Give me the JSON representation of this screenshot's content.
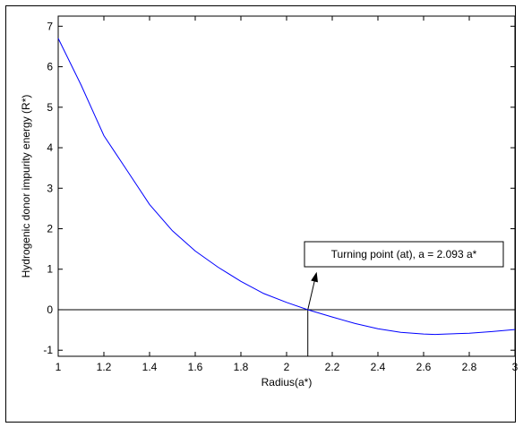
{
  "chart_data": {
    "type": "line",
    "xlabel": "Radius(a*)",
    "ylabel": "Hydrogenic donor impurity energy  (R*)",
    "xlim": [
      1,
      3
    ],
    "ylim": [
      -1.15,
      7.25
    ],
    "xticks": [
      "1",
      "1.2",
      "1.4",
      "1.6",
      "1.8",
      "2",
      "2.2",
      "2.4",
      "2.6",
      "2.8",
      "3"
    ],
    "yticks": [
      "-1",
      "0",
      "1",
      "2",
      "3",
      "4",
      "5",
      "6",
      "7"
    ],
    "grid": false,
    "series": [
      {
        "color": "#0000ff",
        "x": [
          1.0,
          1.1,
          1.2,
          1.3,
          1.4,
          1.5,
          1.6,
          1.7,
          1.8,
          1.9,
          2.0,
          2.093,
          2.2,
          2.3,
          2.4,
          2.5,
          2.6,
          2.65,
          2.7,
          2.8,
          2.9,
          3.0
        ],
        "y": [
          6.7,
          5.55,
          4.3,
          3.45,
          2.6,
          1.95,
          1.45,
          1.05,
          0.7,
          0.4,
          0.18,
          0.0,
          -0.18,
          -0.34,
          -0.47,
          -0.56,
          -0.6,
          -0.61,
          -0.6,
          -0.58,
          -0.54,
          -0.49
        ]
      }
    ],
    "reference_lines": {
      "horizontal_y": 0,
      "vertical_x": 2.093,
      "color": "#000000"
    },
    "annotation": {
      "text": "Turning point (at), a = 2.093 a*",
      "point": [
        2.093,
        0
      ],
      "box_anchor": [
        2.12,
        1.0
      ]
    }
  }
}
